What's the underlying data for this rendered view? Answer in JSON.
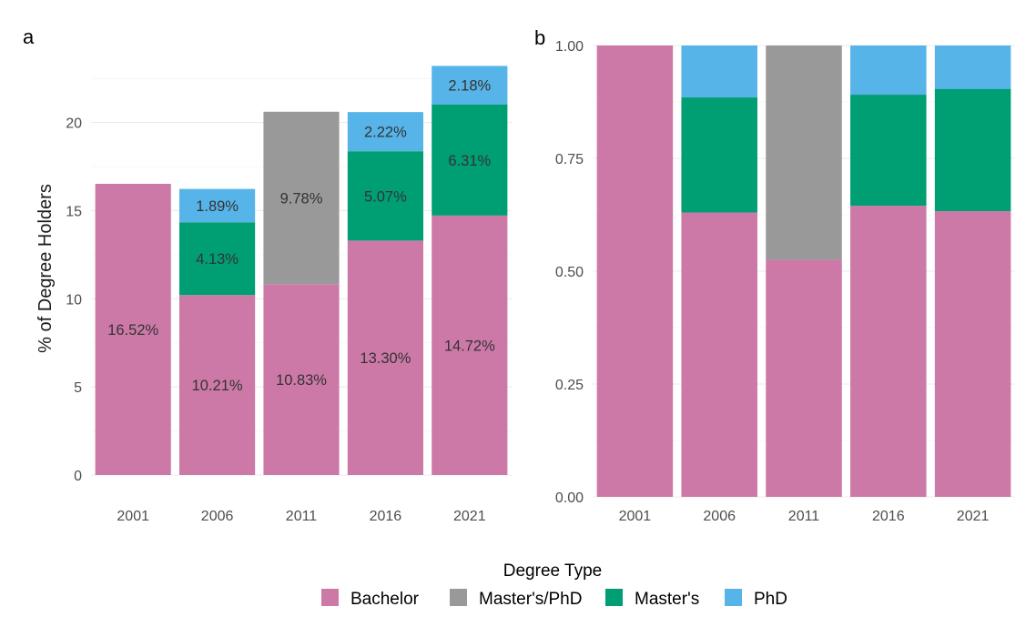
{
  "colors": {
    "Bachelor": "#CC79A7",
    "Master's/PhD": "#999999",
    "Master's": "#009E73",
    "PhD": "#56B4E9"
  },
  "chart_data": [
    {
      "panel_tag": "a",
      "type": "bar",
      "stacked": true,
      "categories": [
        "2001",
        "2006",
        "2011",
        "2016",
        "2021"
      ],
      "series": [
        {
          "name": "Bachelor",
          "values": [
            16.52,
            10.21,
            10.83,
            13.3,
            14.72
          ],
          "labels": [
            "16.52%",
            "10.21%",
            "10.83%",
            "13.30%",
            "14.72%"
          ]
        },
        {
          "name": "Master's/PhD",
          "values": [
            0,
            0,
            9.78,
            0,
            0
          ],
          "labels": [
            "",
            "",
            "9.78%",
            "",
            ""
          ]
        },
        {
          "name": "Master's",
          "values": [
            0,
            4.13,
            0,
            5.07,
            6.31
          ],
          "labels": [
            "",
            "4.13%",
            "",
            "5.07%",
            "6.31%"
          ]
        },
        {
          "name": "PhD",
          "values": [
            0,
            1.89,
            0,
            2.22,
            2.18
          ],
          "labels": [
            "",
            "1.89%",
            "",
            "2.22%",
            "2.18%"
          ]
        }
      ],
      "ylabel": "% of Degree Holders",
      "xlabel": "",
      "ylim": [
        0,
        24
      ],
      "yticks": [
        0,
        5,
        10,
        15,
        20
      ],
      "ytick_labels": [
        "0",
        "5",
        "10",
        "15",
        "20"
      ],
      "grid": true
    },
    {
      "panel_tag": "b",
      "type": "bar",
      "stacked": true,
      "normalized": true,
      "categories": [
        "2001",
        "2006",
        "2011",
        "2016",
        "2021"
      ],
      "series": [
        {
          "name": "Bachelor",
          "values": [
            1.0,
            0.63,
            0.525,
            0.645,
            0.633
          ]
        },
        {
          "name": "Master's/PhD",
          "values": [
            0,
            0,
            0.475,
            0,
            0
          ]
        },
        {
          "name": "Master's",
          "values": [
            0,
            0.255,
            0,
            0.246,
            0.271
          ]
        },
        {
          "name": "PhD",
          "values": [
            0,
            0.115,
            0,
            0.109,
            0.096
          ]
        }
      ],
      "ylabel": "",
      "xlabel": "",
      "ylim": [
        0,
        1
      ],
      "yticks": [
        0,
        0.25,
        0.5,
        0.75,
        1.0
      ],
      "ytick_labels": [
        "0.00",
        "0.25",
        "0.50",
        "0.75",
        "1.00"
      ],
      "grid": true
    }
  ],
  "legend": {
    "title": "Degree Type",
    "position": "bottom",
    "items": [
      "Bachelor",
      "Master's/PhD",
      "Master's",
      "PhD"
    ]
  }
}
